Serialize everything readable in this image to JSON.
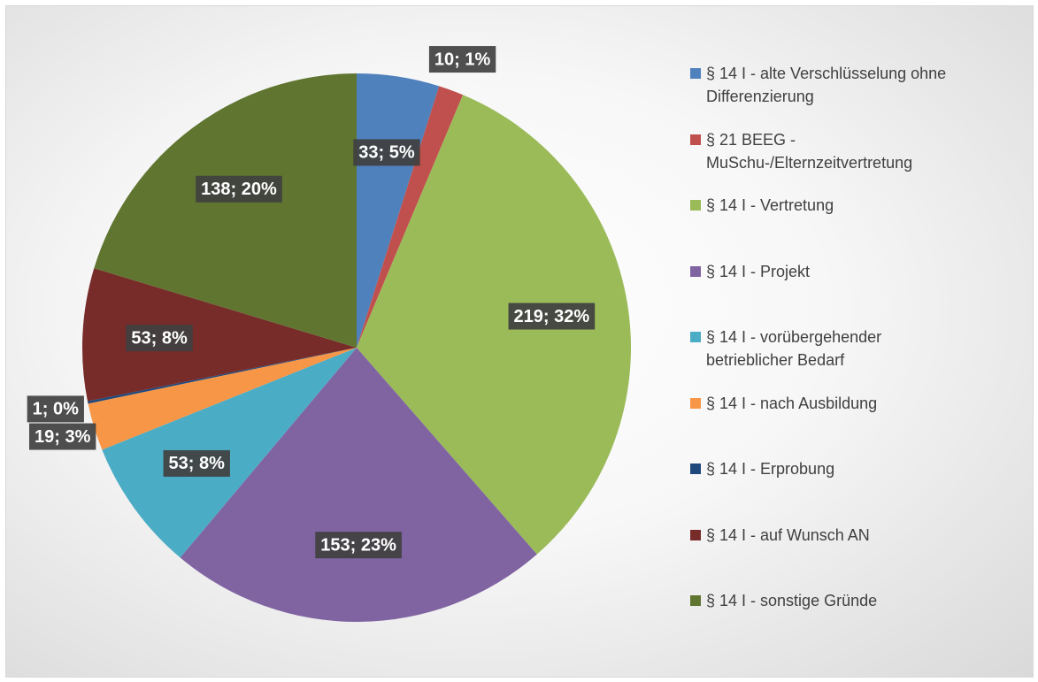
{
  "chart_data": {
    "type": "pie",
    "categories": [
      "§ 14 I - alte Verschlüsselung ohne Differenzierung",
      "§ 21 BEEG - MuSchu-/Elternzeitvertretung",
      "§ 14 I - Vertretung",
      "§ 14 I - Projekt",
      "§ 14 I - vorübergehender betrieblicher Bedarf",
      "§ 14 I - nach Ausbildung",
      "§ 14 I - Erprobung",
      "§ 14 I - auf Wunsch AN",
      "§ 14 I - sonstige Gründe"
    ],
    "values": [
      33,
      10,
      219,
      153,
      53,
      19,
      1,
      53,
      138
    ],
    "value_labels": [
      "33; 5%",
      "10; 1%",
      "219; 32%",
      "153; 23%",
      "53; 8%",
      "19; 3%",
      "1; 0%",
      "53; 8%",
      "138; 20%"
    ],
    "colors": [
      "#4f81bd",
      "#c0504d",
      "#9bbb59",
      "#8064a2",
      "#4bacc6",
      "#f79646",
      "#1f497d",
      "#772c2a",
      "#5f7530"
    ],
    "legend": "right"
  }
}
